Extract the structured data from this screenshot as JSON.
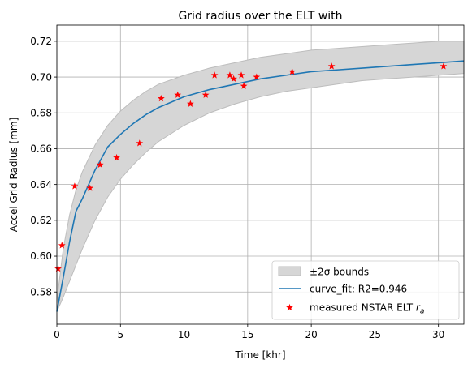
{
  "chart_data": {
    "type": "line",
    "title": "Grid radius over the ELT with",
    "xlabel": "Time [khr]",
    "ylabel": "Accel Grid Radius [mm]",
    "xlim": [
      0,
      32
    ],
    "ylim": [
      0.562,
      0.729
    ],
    "x_ticks": [
      0,
      5,
      10,
      15,
      20,
      25,
      30
    ],
    "y_ticks": [
      0.58,
      0.6,
      0.62,
      0.64,
      0.66,
      0.68,
      0.7,
      0.72
    ],
    "grid": true,
    "legend_position": "lower-right",
    "legend": {
      "band": "±2σ bounds",
      "fit": "curve_fit: R2=0.946",
      "points": "measured NSTAR ELT r_a"
    },
    "colors": {
      "band_fill": "#d6d6d6",
      "band_edge": "#bdbdbd",
      "fit_line": "#1f77b4",
      "points": "#ff0000"
    },
    "fit_curve": {
      "x": [
        0,
        0.5,
        1,
        1.5,
        2,
        3,
        4,
        5,
        6,
        7,
        8,
        10,
        12,
        14,
        16,
        18,
        20,
        22,
        24,
        26,
        28,
        30,
        32
      ],
      "y": [
        0.569,
        0.588,
        0.608,
        0.625,
        0.632,
        0.648,
        0.661,
        0.668,
        0.674,
        0.679,
        0.683,
        0.689,
        0.693,
        0.696,
        0.699,
        0.701,
        0.703,
        0.704,
        0.705,
        0.706,
        0.707,
        0.708,
        0.709
      ]
    },
    "band_upper": {
      "x": [
        0,
        0.5,
        1,
        1.5,
        2,
        3,
        4,
        5,
        6,
        7,
        8,
        10,
        12,
        14,
        16,
        18,
        20,
        22,
        24,
        26,
        28,
        30,
        32
      ],
      "y": [
        0.575,
        0.604,
        0.623,
        0.637,
        0.647,
        0.662,
        0.673,
        0.681,
        0.687,
        0.692,
        0.696,
        0.701,
        0.705,
        0.708,
        0.711,
        0.713,
        0.715,
        0.716,
        0.717,
        0.718,
        0.719,
        0.72,
        0.72
      ]
    },
    "band_lower": {
      "x": [
        0,
        0.5,
        1,
        1.5,
        2,
        3,
        4,
        5,
        6,
        7,
        8,
        10,
        12,
        14,
        16,
        18,
        20,
        22,
        24,
        26,
        28,
        30,
        32
      ],
      "y": [
        0.569,
        0.577,
        0.586,
        0.595,
        0.604,
        0.62,
        0.633,
        0.643,
        0.651,
        0.658,
        0.664,
        0.673,
        0.68,
        0.685,
        0.689,
        0.692,
        0.694,
        0.696,
        0.698,
        0.699,
        0.7,
        0.701,
        0.702
      ]
    },
    "measured": {
      "x": [
        0.1,
        0.4,
        1.4,
        2.6,
        3.4,
        4.7,
        6.5,
        8.2,
        9.5,
        10.5,
        11.7,
        12.4,
        13.6,
        13.9,
        14.5,
        14.7,
        15.7,
        18.5,
        21.6,
        30.4
      ],
      "y": [
        0.593,
        0.606,
        0.639,
        0.638,
        0.651,
        0.655,
        0.663,
        0.688,
        0.69,
        0.685,
        0.69,
        0.701,
        0.701,
        0.699,
        0.701,
        0.695,
        0.7,
        0.703,
        0.706,
        0.706
      ]
    }
  }
}
